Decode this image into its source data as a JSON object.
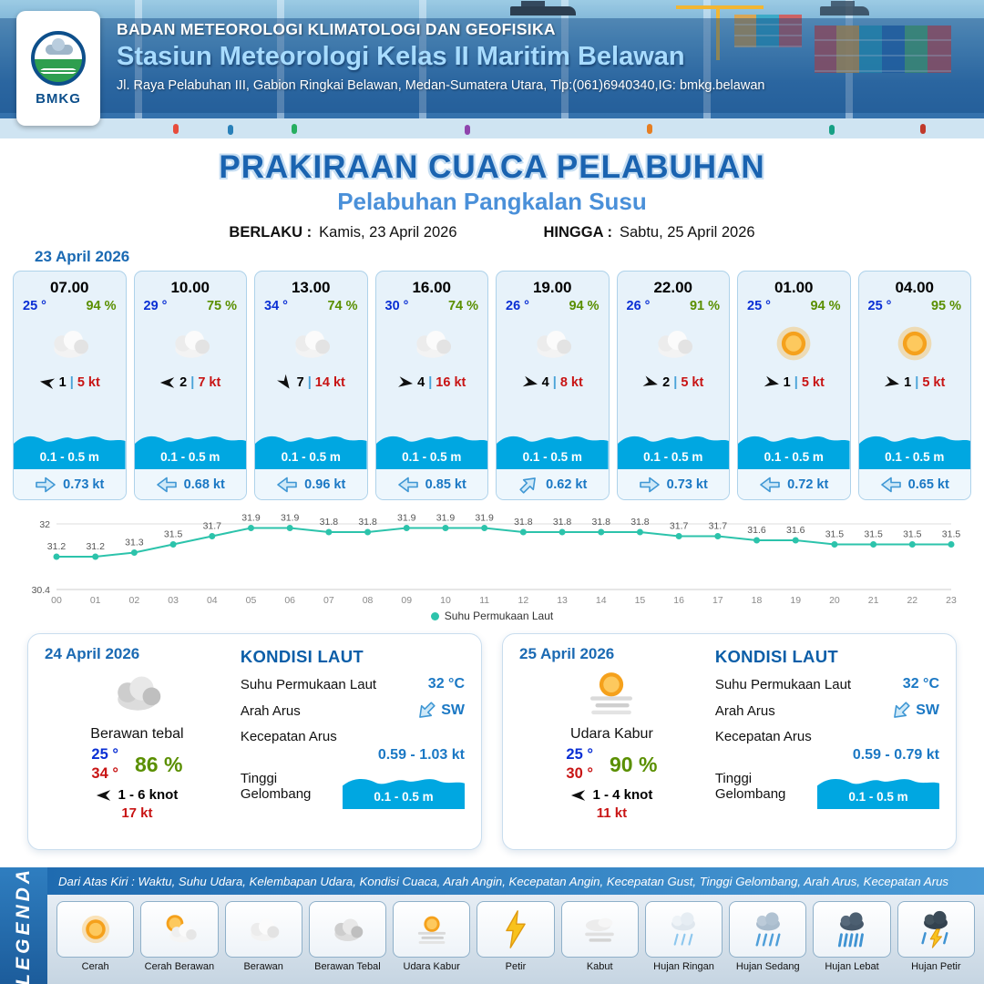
{
  "colors": {
    "wave": "#00a7e1",
    "sst_line": "#2cc3ab",
    "accent_blue": "#1a63b0"
  },
  "header": {
    "logo_text": "BMKG",
    "org": "BADAN METEOROLOGI KLIMATOLOGI DAN GEOFISIKA",
    "station": "Stasiun Meteorologi Kelas II Maritim Belawan",
    "address": "Jl. Raya Pelabuhan III, Gabion Ringkai Belawan, Medan-Sumatera Utara, Tlp:(061)6940340,IG: bmkg.belawan"
  },
  "title": {
    "main": "PRAKIRAAN CUACA PELABUHAN",
    "subtitle": "Pelabuhan Pangkalan Susu",
    "berlaku_label": "BERLAKU :",
    "berlaku_value": "Kamis, 23 April 2026",
    "hingga_label": "HINGGA :",
    "hingga_value": "Sabtu, 25 April 2026"
  },
  "forecast": {
    "date": "23 April 2026",
    "sep": "|",
    "cards": [
      {
        "time": "07.00",
        "temp": "25 °",
        "rh": "94 %",
        "icon": "berawan",
        "wind_deg": 190,
        "wind_val": "1",
        "gust": "5 kt",
        "wave": "0.1 - 0.5 m",
        "cur_deg": 0,
        "cur": "0.73 kt"
      },
      {
        "time": "10.00",
        "temp": "29 °",
        "rh": "75 %",
        "icon": "berawan",
        "wind_deg": 180,
        "wind_val": "2",
        "gust": "7 kt",
        "wave": "0.1 - 0.5 m",
        "cur_deg": 180,
        "cur": "0.68 kt"
      },
      {
        "time": "13.00",
        "temp": "34 °",
        "rh": "74 %",
        "icon": "berawan",
        "wind_deg": 55,
        "wind_val": "7",
        "gust": "14 kt",
        "wave": "0.1 - 0.5 m",
        "cur_deg": 180,
        "cur": "0.96 kt"
      },
      {
        "time": "16.00",
        "temp": "30 °",
        "rh": "74 %",
        "icon": "berawan",
        "wind_deg": 8,
        "wind_val": "4",
        "gust": "16 kt",
        "wave": "0.1 - 0.5 m",
        "cur_deg": 180,
        "cur": "0.85 kt"
      },
      {
        "time": "19.00",
        "temp": "26 °",
        "rh": "94 %",
        "icon": "berawan",
        "wind_deg": 12,
        "wind_val": "4",
        "gust": "8 kt",
        "wave": "0.1 - 0.5 m",
        "cur_deg": -45,
        "cur": "0.62 kt"
      },
      {
        "time": "22.00",
        "temp": "26 °",
        "rh": "91 %",
        "icon": "berawan",
        "wind_deg": 15,
        "wind_val": "2",
        "gust": "5 kt",
        "wave": "0.1 - 0.5 m",
        "cur_deg": 0,
        "cur": "0.73 kt"
      },
      {
        "time": "01.00",
        "temp": "25 °",
        "rh": "94 %",
        "icon": "cerah",
        "wind_deg": 12,
        "wind_val": "1",
        "gust": "5 kt",
        "wave": "0.1 - 0.5 m",
        "cur_deg": 180,
        "cur": "0.72 kt"
      },
      {
        "time": "04.00",
        "temp": "25 °",
        "rh": "95 %",
        "icon": "cerah",
        "wind_deg": 12,
        "wind_val": "1",
        "gust": "5 kt",
        "wave": "0.1 - 0.5 m",
        "cur_deg": 180,
        "cur": "0.65 kt"
      }
    ]
  },
  "chart_data": {
    "type": "line",
    "title": "",
    "x": [
      "00",
      "01",
      "02",
      "03",
      "04",
      "05",
      "06",
      "07",
      "08",
      "09",
      "10",
      "11",
      "12",
      "13",
      "14",
      "15",
      "16",
      "17",
      "18",
      "19",
      "20",
      "21",
      "22",
      "23"
    ],
    "series": [
      {
        "name": "Suhu Permukaan Laut",
        "values": [
          31.2,
          31.2,
          31.3,
          31.5,
          31.7,
          31.9,
          31.9,
          31.8,
          31.8,
          31.9,
          31.9,
          31.9,
          31.8,
          31.8,
          31.8,
          31.8,
          31.7,
          31.7,
          31.6,
          31.6,
          31.5,
          31.5,
          31.5,
          31.5
        ]
      }
    ],
    "ylim": [
      30.4,
      32
    ],
    "y_ticks": [
      "32",
      "30.4"
    ],
    "line_color": "#2cc3ab",
    "grid": true,
    "legend_position": "bottom"
  },
  "daily": [
    {
      "date": "24 April 2026",
      "icon": "berawan-tebal",
      "condition": "Berawan tebal",
      "temp_min": "25 °",
      "temp_max": "34 °",
      "rh": "86 %",
      "wind_deg": 180,
      "wind_range": "1 - 6 knot",
      "gust": "17 kt",
      "sea_title": "KONDISI LAUT",
      "sst_label": "Suhu Permukaan Laut",
      "sst": "32 °C",
      "arus_label": "Arah Arus",
      "arus_dir": "SW",
      "arus_deg": 135,
      "kec_label": "Kecepatan Arus",
      "kec": "0.59 - 1.03 kt",
      "gel_label": "Tinggi Gelombang",
      "gel": "0.1 - 0.5 m"
    },
    {
      "date": "25 April 2026",
      "icon": "udara-kabur",
      "condition": "Udara Kabur",
      "temp_min": "25 °",
      "temp_max": "30 °",
      "rh": "90 %",
      "wind_deg": 180,
      "wind_range": "1 - 4 knot",
      "gust": "11 kt",
      "sea_title": "KONDISI LAUT",
      "sst_label": "Suhu Permukaan Laut",
      "sst": "32 °C",
      "arus_label": "Arah Arus",
      "arus_dir": "SW",
      "arus_deg": 135,
      "kec_label": "Kecepatan Arus",
      "kec": "0.59 - 0.79 kt",
      "gel_label": "Tinggi Gelombang",
      "gel": "0.1 - 0.5 m"
    }
  ],
  "legend": {
    "rail": "LEGENDA",
    "note": "Dari Atas Kiri : Waktu, Suhu Udara, Kelembapan Udara, Kondisi Cuaca, Arah Angin, Kecepatan Angin, Kecepatan Gust, Tinggi Gelombang, Arah Arus, Kecepatan Arus",
    "items": [
      {
        "icon": "cerah",
        "label": "Cerah"
      },
      {
        "icon": "cerah-berawan",
        "label": "Cerah Berawan"
      },
      {
        "icon": "berawan",
        "label": "Berawan"
      },
      {
        "icon": "berawan-tebal",
        "label": "Berawan Tebal"
      },
      {
        "icon": "udara-kabur",
        "label": "Udara Kabur"
      },
      {
        "icon": "petir",
        "label": "Petir"
      },
      {
        "icon": "kabut",
        "label": "Kabut"
      },
      {
        "icon": "hujan-ringan",
        "label": "Hujan Ringan"
      },
      {
        "icon": "hujan-sedang",
        "label": "Hujan Sedang"
      },
      {
        "icon": "hujan-lebat",
        "label": "Hujan Lebat"
      },
      {
        "icon": "hujan-petir",
        "label": "Hujan Petir"
      }
    ]
  }
}
